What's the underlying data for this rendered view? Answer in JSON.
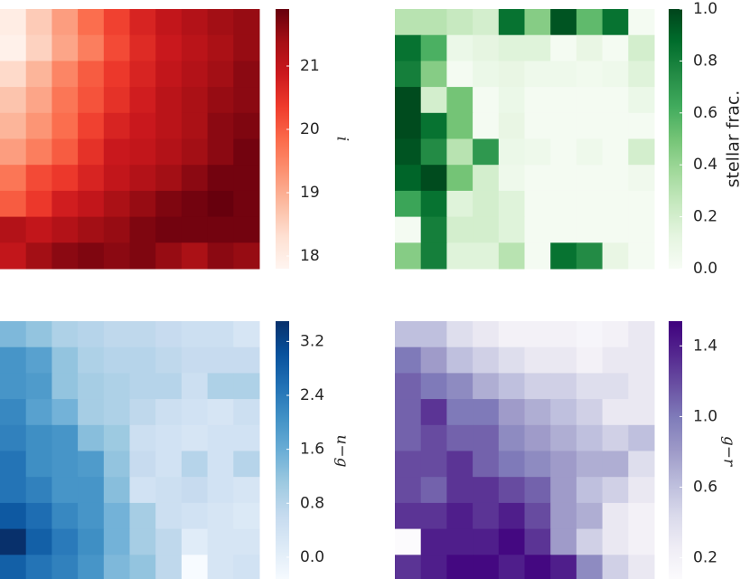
{
  "chart_data": [
    {
      "type": "heatmap",
      "colorbar_label": "i",
      "zlim": [
        17.8,
        21.9
      ],
      "zticks": [
        18,
        19,
        20,
        21
      ],
      "cmap": [
        "#fff5f0",
        "#fee0d2",
        "#fcbba1",
        "#fc9272",
        "#fb6a4a",
        "#ef3b2c",
        "#cb181d",
        "#a50f15",
        "#67000d"
      ],
      "values": [
        [
          18.0,
          18.6,
          19.2,
          19.8,
          20.3,
          20.7,
          21.0,
          21.2,
          21.4,
          21.5
        ],
        [
          17.9,
          18.5,
          19.1,
          19.6,
          20.2,
          20.6,
          20.9,
          21.1,
          21.3,
          21.5
        ],
        [
          18.4,
          18.9,
          19.5,
          20.0,
          20.4,
          20.7,
          21.0,
          21.2,
          21.4,
          21.6
        ],
        [
          18.7,
          19.1,
          19.7,
          20.1,
          20.5,
          20.8,
          21.1,
          21.3,
          21.5,
          21.6
        ],
        [
          18.9,
          19.3,
          19.8,
          20.3,
          20.7,
          20.9,
          21.1,
          21.3,
          21.6,
          21.7
        ],
        [
          19.2,
          19.6,
          20.0,
          20.5,
          20.9,
          21.0,
          21.2,
          21.4,
          21.6,
          21.8
        ],
        [
          19.7,
          20.2,
          20.4,
          20.7,
          21.0,
          21.2,
          21.4,
          21.6,
          21.8,
          21.8
        ],
        [
          20.0,
          20.4,
          20.8,
          21.0,
          21.3,
          21.5,
          21.7,
          21.8,
          21.9,
          21.8
        ],
        [
          21.2,
          21.0,
          21.2,
          21.4,
          21.5,
          21.7,
          21.8,
          21.8,
          21.8,
          21.8
        ],
        [
          21.0,
          21.4,
          21.6,
          21.7,
          21.6,
          21.7,
          21.5,
          21.3,
          21.6,
          21.5
        ]
      ]
    },
    {
      "type": "heatmap",
      "colorbar_label": "stellar frac.",
      "zlim": [
        0,
        1
      ],
      "zticks": [
        {
          "value": 0,
          "label": "0.0"
        },
        0.2,
        0.4,
        0.6,
        0.8,
        {
          "value": 1,
          "label": "1.0"
        }
      ],
      "cmap": [
        "#f7fcf5",
        "#e5f5e0",
        "#c7e9c0",
        "#a1d99b",
        "#74c476",
        "#41ab5d",
        "#238b45",
        "#006d2c",
        "#00441b"
      ],
      "values": [
        [
          0.3,
          0.3,
          0.25,
          0.2,
          0.85,
          0.45,
          0.95,
          0.55,
          0.85,
          0.02
        ],
        [
          0.85,
          0.6,
          0.08,
          0.12,
          0.15,
          0.15,
          0.02,
          0.1,
          0.02,
          0.2
        ],
        [
          0.8,
          0.45,
          0.02,
          0.08,
          0.1,
          0.06,
          0.06,
          0.04,
          0.06,
          0.15
        ],
        [
          0.98,
          0.2,
          0.5,
          0.02,
          0.08,
          0.02,
          0.02,
          0.02,
          0.02,
          0.08
        ],
        [
          0.98,
          0.85,
          0.5,
          0.02,
          0.1,
          0.02,
          0.02,
          0.02,
          0.02,
          0.02
        ],
        [
          0.95,
          0.75,
          0.3,
          0.7,
          0.08,
          0.06,
          0.02,
          0.06,
          0.02,
          0.2
        ],
        [
          0.9,
          0.98,
          0.5,
          0.2,
          0.06,
          0.02,
          0.02,
          0.02,
          0.02,
          0.05
        ],
        [
          0.65,
          0.85,
          0.15,
          0.2,
          0.15,
          0.02,
          0.02,
          0.02,
          0.02,
          0.02
        ],
        [
          0.02,
          0.8,
          0.2,
          0.2,
          0.15,
          0.02,
          0.02,
          0.02,
          0.02,
          0.02
        ],
        [
          0.45,
          0.8,
          0.15,
          0.15,
          0.3,
          0.02,
          0.85,
          0.75,
          0.1,
          0.02
        ]
      ]
    },
    {
      "type": "heatmap",
      "colorbar_label": "u−g",
      "zlim": [
        -0.35,
        3.5
      ],
      "zticks": [
        {
          "value": 0,
          "label": "0.0"
        },
        0.8,
        1.6,
        2.4,
        3.2
      ],
      "cmap": [
        "#f7fbff",
        "#deebf7",
        "#c6dbef",
        "#9ecae1",
        "#6baed6",
        "#4292c6",
        "#2171b5",
        "#08519c",
        "#08306b"
      ],
      "values": [
        [
          1.4,
          1.2,
          0.9,
          0.8,
          0.7,
          0.7,
          0.6,
          0.5,
          0.5,
          0.3
        ],
        [
          2.0,
          1.8,
          1.2,
          0.9,
          0.8,
          0.8,
          0.7,
          0.6,
          0.6,
          0.6
        ],
        [
          2.0,
          1.9,
          1.2,
          1.0,
          0.9,
          0.8,
          0.8,
          0.5,
          0.9,
          0.9
        ],
        [
          2.2,
          1.8,
          1.5,
          1.0,
          0.9,
          0.7,
          0.5,
          0.4,
          0.3,
          0.5
        ],
        [
          2.3,
          2.1,
          2.0,
          1.3,
          1.1,
          0.5,
          0.4,
          0.3,
          0.4,
          0.4
        ],
        [
          2.5,
          2.1,
          2.0,
          1.9,
          1.2,
          0.6,
          0.4,
          0.8,
          0.4,
          0.8
        ],
        [
          2.5,
          2.3,
          2.0,
          2.0,
          1.3,
          0.4,
          0.5,
          0.6,
          0.4,
          0.3
        ],
        [
          2.9,
          2.6,
          2.2,
          2.0,
          1.5,
          1.0,
          0.5,
          0.4,
          0.3,
          0.2
        ],
        [
          3.5,
          2.8,
          2.4,
          2.1,
          1.5,
          1.0,
          0.7,
          0.1,
          0.3,
          0.3
        ],
        [
          2.8,
          2.5,
          2.3,
          2.0,
          1.4,
          1.2,
          0.7,
          -0.35,
          0.3,
          0.4
        ]
      ]
    },
    {
      "type": "heatmap",
      "colorbar_label": "g−r",
      "zlim": [
        0.07,
        1.54
      ],
      "zticks": [
        0.2,
        0.6,
        {
          "value": 1,
          "label": "1.0"
        },
        1.4
      ],
      "cmap": [
        "#fcfbfd",
        "#efedf5",
        "#dadaeb",
        "#bcbddc",
        "#9e9ac8",
        "#807dba",
        "#6a51a3",
        "#54278f",
        "#3f007d"
      ],
      "values": [
        [
          0.6,
          0.6,
          0.4,
          0.3,
          0.2,
          0.2,
          0.2,
          0.15,
          0.2,
          0.3
        ],
        [
          1.0,
          0.8,
          0.6,
          0.5,
          0.4,
          0.3,
          0.3,
          0.2,
          0.3,
          0.3
        ],
        [
          1.1,
          1.0,
          0.9,
          0.7,
          0.6,
          0.5,
          0.5,
          0.4,
          0.4,
          0.3
        ],
        [
          1.1,
          1.3,
          1.0,
          1.0,
          0.8,
          0.7,
          0.6,
          0.5,
          0.3,
          0.3
        ],
        [
          1.1,
          1.2,
          1.1,
          1.1,
          0.9,
          0.8,
          0.7,
          0.6,
          0.5,
          0.6
        ],
        [
          1.2,
          1.2,
          1.3,
          1.1,
          1.0,
          0.9,
          0.8,
          0.7,
          0.7,
          0.4
        ],
        [
          1.2,
          1.1,
          1.3,
          1.3,
          1.2,
          1.1,
          0.8,
          0.6,
          0.5,
          0.3
        ],
        [
          1.3,
          1.3,
          1.4,
          1.3,
          1.4,
          1.2,
          0.8,
          0.7,
          0.3,
          0.2
        ],
        [
          0.07,
          1.4,
          1.4,
          1.4,
          1.5,
          1.3,
          0.8,
          0.5,
          0.3,
          0.2
        ],
        [
          1.3,
          1.4,
          1.5,
          1.5,
          1.4,
          1.5,
          1.4,
          0.9,
          0.5,
          0.3
        ]
      ]
    }
  ]
}
